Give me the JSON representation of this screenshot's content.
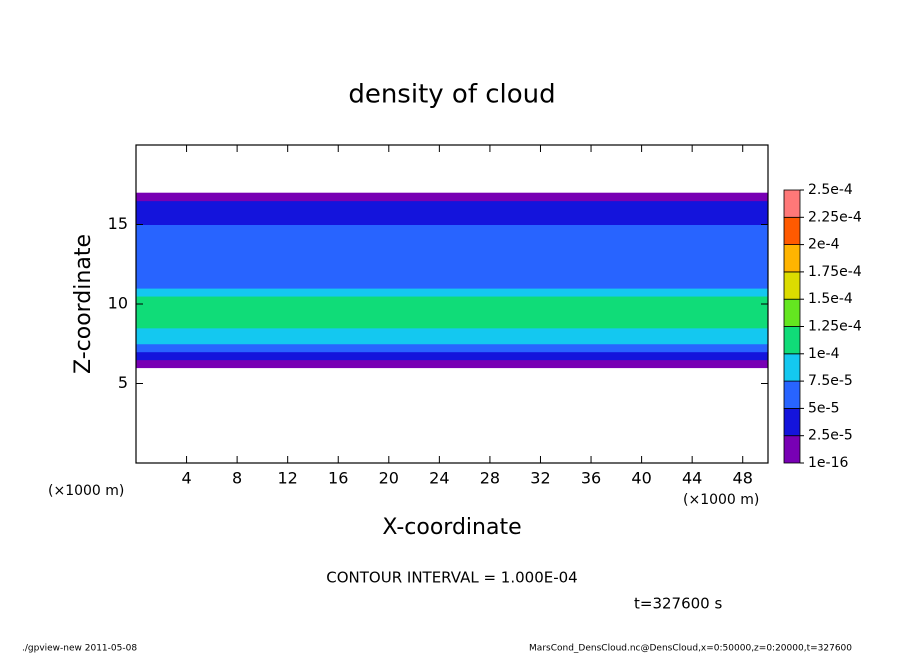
{
  "chart_data": {
    "type": "contour",
    "title": "density of cloud",
    "xlabel": "X-coordinate",
    "ylabel": "Z-coordinate",
    "x_units": "(×1000 m)",
    "xlim": [
      0,
      50
    ],
    "xticks": [
      4,
      8,
      12,
      16,
      20,
      24,
      28,
      32,
      36,
      40,
      44,
      48
    ],
    "ylim": [
      0,
      20
    ],
    "yticks": [
      5,
      10,
      15
    ],
    "levels": [
      {
        "value": 1e-16,
        "label": "1e-16"
      },
      {
        "value": 2.5e-05,
        "label": "2.5e-5"
      },
      {
        "value": 5e-05,
        "label": "5e-5"
      },
      {
        "value": 7.5e-05,
        "label": "7.5e-5"
      },
      {
        "value": 0.0001,
        "label": "1e-4"
      },
      {
        "value": 0.000125,
        "label": "1.25e-4"
      },
      {
        "value": 0.00015,
        "label": "1.5e-4"
      },
      {
        "value": 0.000175,
        "label": "1.75e-4"
      },
      {
        "value": 0.0002,
        "label": "2e-4"
      },
      {
        "value": 0.000225,
        "label": "2.25e-4"
      },
      {
        "value": 0.00025,
        "label": "2.5e-4"
      }
    ],
    "colors": [
      "#7800b4",
      "#1414dc",
      "#2864ff",
      "#14c8f0",
      "#10dc78",
      "#64e620",
      "#dcdc00",
      "#ffb400",
      "#ff5a00",
      "#ff7878"
    ],
    "profile": {
      "z": [
        6.0,
        6.5,
        7.0,
        7.5,
        8.0,
        8.5,
        9.0,
        9.5,
        10.0,
        10.5,
        11.0,
        11.5,
        12.0,
        12.5,
        13.0,
        13.5,
        14.0,
        14.5,
        15.0,
        15.5,
        16.0,
        16.5
      ],
      "values": [
        1e-05,
        3e-05,
        6e-05,
        8e-05,
        9e-05,
        0.00011,
        0.00012,
        0.00012,
        0.00011,
        8e-05,
        6e-05,
        5.5e-05,
        5.5e-05,
        5.5e-05,
        5.5e-05,
        5.5e-05,
        5.5e-05,
        5.5e-05,
        4e-05,
        3e-05,
        3e-05,
        1e-05
      ]
    },
    "contour_interval": "CONTOUR INTERVAL = 1.000E-04",
    "time_label": "t=327600 s",
    "footer_left": "./gpview-new  2011-05-08",
    "footer_right": "MarsCond_DensCloud.nc@DensCloud,x=0:50000,z=0:20000,t=327600"
  }
}
